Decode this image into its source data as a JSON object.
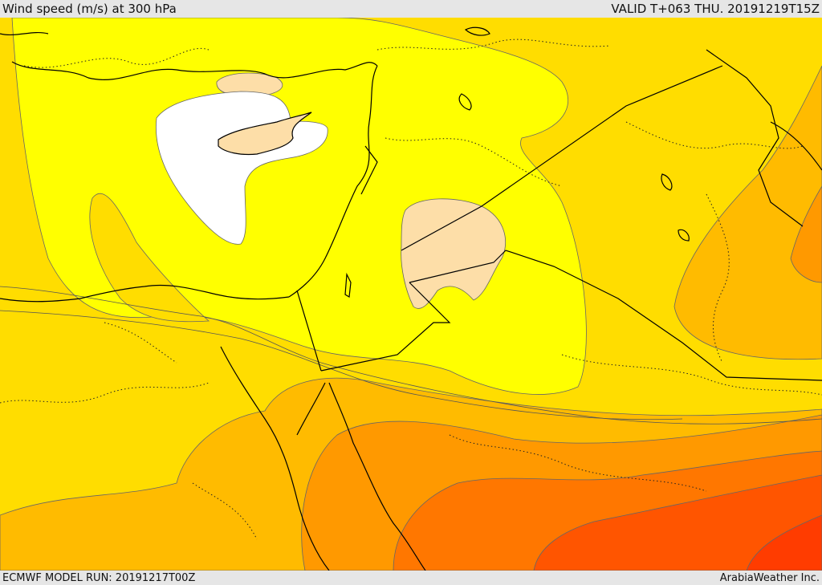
{
  "header": {
    "title": "Wind speed (m/s) at 300 hPa",
    "valid": "VALID T+063 THU. 20191219T15Z"
  },
  "footer": {
    "model_run": "ECMWF MODEL RUN: 20191217T00Z",
    "credit": "ArabiaWeather Inc."
  },
  "map": {
    "colors": {
      "band_20_25": "#ffffff",
      "band_25_30": "#fddea8",
      "band_30_35": "#ffff00",
      "band_35_40": "#ffdd00",
      "band_40_45": "#ffbb00",
      "band_45_50": "#ff9900",
      "band_50_55": "#ff7700",
      "band_55_60": "#ff5500",
      "band_60_65": "#ff3c00",
      "coastline": "#000000",
      "border": "#000000",
      "contour": "#555555"
    },
    "layers": [
      "wind-speed-shading",
      "contours",
      "coastlines",
      "country-borders",
      "admin-borders"
    ]
  }
}
